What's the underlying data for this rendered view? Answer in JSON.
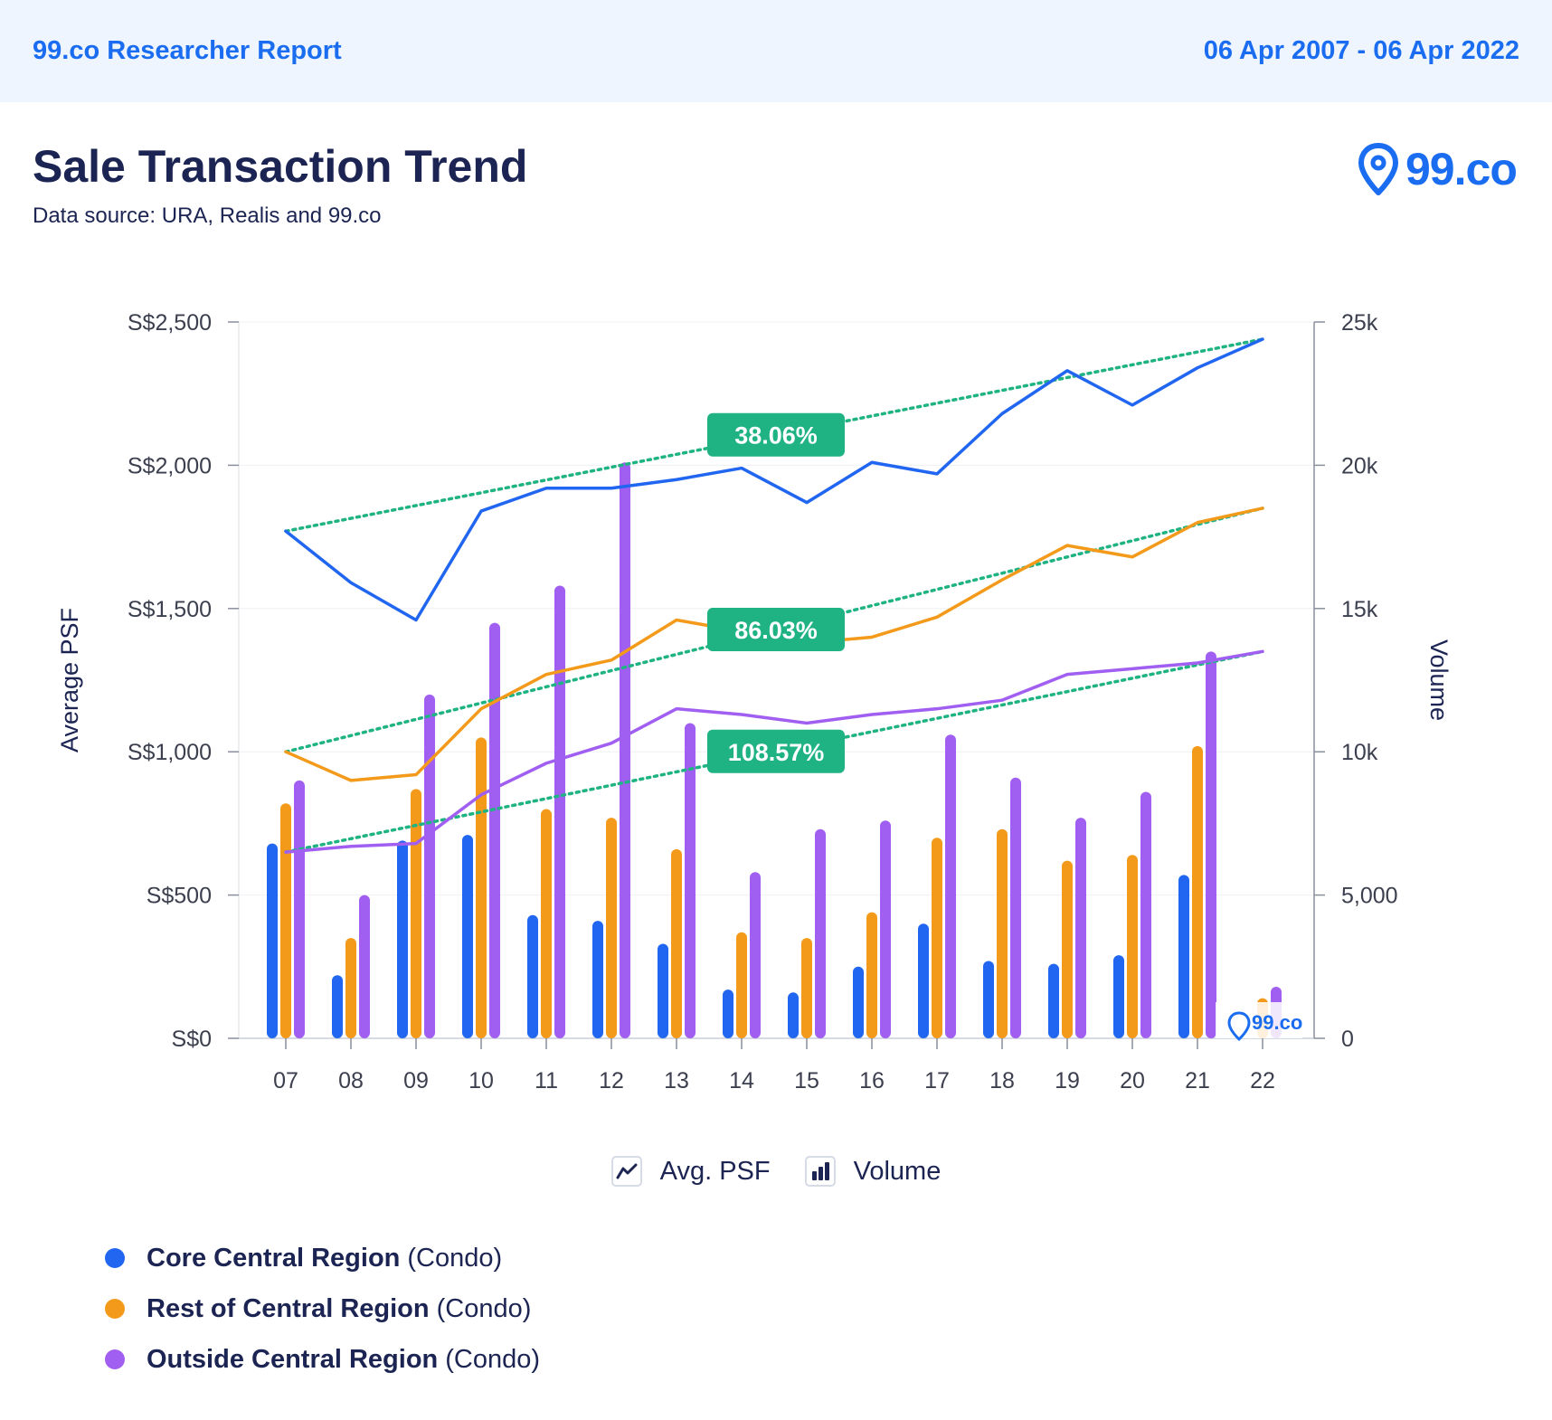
{
  "header": {
    "report_name": "99.co Researcher Report",
    "date_range": "06 Apr 2007 - 06 Apr 2022"
  },
  "page": {
    "title": "Sale Transaction Trend",
    "subtitle": "Data source: URA, Realis and 99.co",
    "logo_text": "99.co"
  },
  "colors": {
    "ccr": "#2166f0",
    "rcr": "#f39a1b",
    "ocr": "#a15ff2",
    "trend": "#1fb384",
    "badge": "#1fb384"
  },
  "chart_data": {
    "type": "bar+line",
    "x_label_prefix": "",
    "categories": [
      "07",
      "08",
      "09",
      "10",
      "11",
      "12",
      "13",
      "14",
      "15",
      "16",
      "17",
      "18",
      "19",
      "20",
      "21",
      "22"
    ],
    "y_left": {
      "label": "Average PSF",
      "range": [
        0,
        2500
      ],
      "ticks": [
        0,
        500,
        1000,
        1500,
        2000,
        2500
      ],
      "tick_labels": [
        "S$0",
        "S$500",
        "S$1,000",
        "S$1,500",
        "S$2,000",
        "S$2,500"
      ]
    },
    "y_right": {
      "label": "Volume",
      "range": [
        0,
        25000
      ],
      "ticks": [
        0,
        5000,
        10000,
        15000,
        20000,
        25000
      ],
      "tick_labels": [
        "0",
        "5,000",
        "10k",
        "15k",
        "20k",
        "25k"
      ]
    },
    "series": [
      {
        "key": "ccr",
        "name": "Core Central Region",
        "suffix": "(Condo)",
        "psf": [
          1770,
          1590,
          1460,
          1840,
          1920,
          1920,
          1950,
          1990,
          1870,
          2010,
          1970,
          2180,
          2330,
          2210,
          2340,
          2440
        ],
        "volume": [
          6800,
          2200,
          6900,
          7100,
          4300,
          4100,
          3300,
          1700,
          1600,
          2500,
          4000,
          2700,
          2600,
          2900,
          5700,
          0
        ],
        "trend": [
          1770,
          2440
        ],
        "trend_label": "38.06%"
      },
      {
        "key": "rcr",
        "name": "Rest of Central Region",
        "suffix": "(Condo)",
        "psf": [
          1000,
          900,
          920,
          1150,
          1270,
          1320,
          1460,
          1420,
          1380,
          1400,
          1470,
          1600,
          1720,
          1680,
          1800,
          1850
        ],
        "volume": [
          8200,
          3500,
          8700,
          10500,
          8000,
          7700,
          6600,
          3700,
          3500,
          4400,
          7000,
          7300,
          6200,
          6400,
          10200,
          1400
        ],
        "trend": [
          1000,
          1850
        ],
        "trend_label": "86.03%"
      },
      {
        "key": "ocr",
        "name": "Outside Central Region",
        "suffix": "(Condo)",
        "psf": [
          650,
          670,
          680,
          850,
          960,
          1030,
          1150,
          1130,
          1100,
          1130,
          1150,
          1180,
          1270,
          1290,
          1310,
          1350
        ],
        "volume": [
          9000,
          5000,
          12000,
          14500,
          15800,
          20100,
          11000,
          5800,
          7300,
          7600,
          10600,
          9100,
          7700,
          8600,
          13500,
          1800
        ],
        "trend": [
          650,
          1350
        ],
        "trend_label": "108.57%"
      }
    ],
    "grid": true,
    "legend": "bottom"
  },
  "mode_legend": {
    "psf_label": "Avg. PSF",
    "volume_label": "Volume",
    "psf_icon": "line-chart-icon",
    "volume_icon": "bar-chart-icon"
  },
  "watermark": {
    "text": "99.co"
  }
}
